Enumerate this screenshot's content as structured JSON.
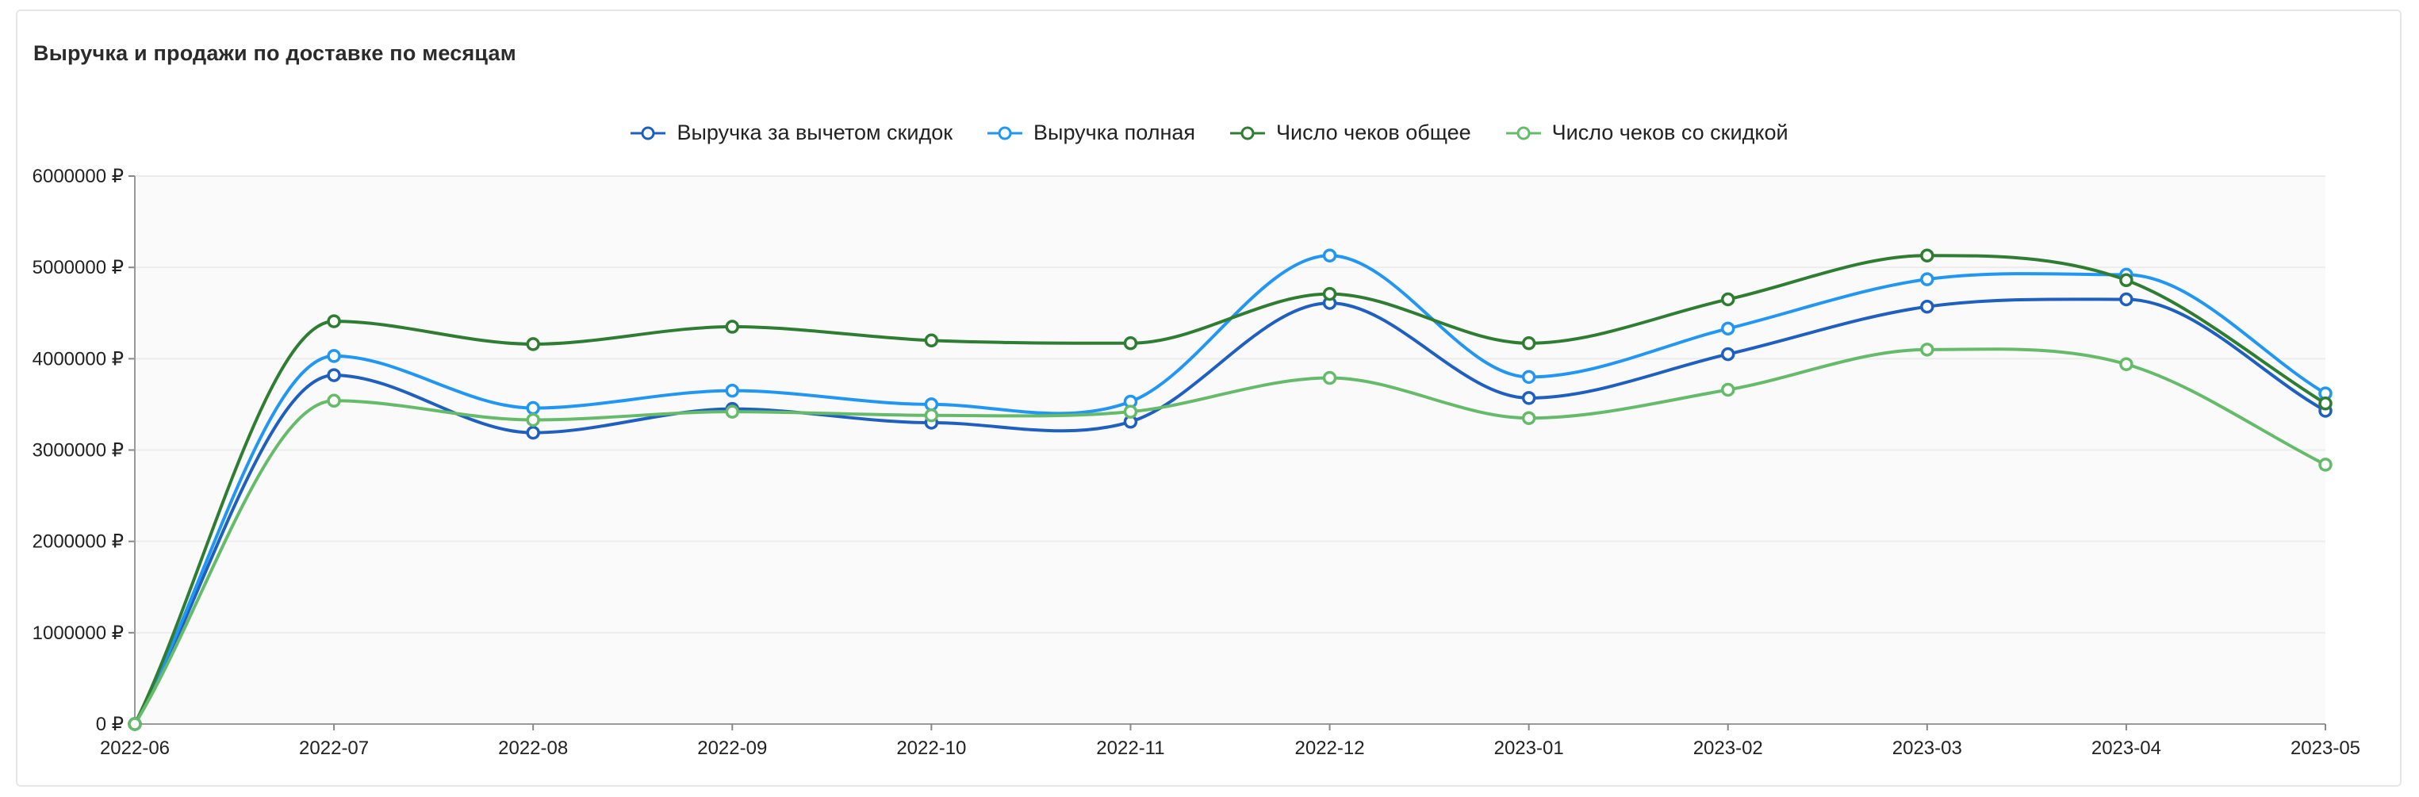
{
  "chart_data": {
    "type": "line",
    "title": "Выручка и продажи по доставке по месяцам",
    "x": [
      "2022-06",
      "2022-07",
      "2022-08",
      "2022-09",
      "2022-10",
      "2022-11",
      "2022-12",
      "2023-01",
      "2023-02",
      "2023-03",
      "2023-04",
      "2023-05"
    ],
    "ylim": [
      0,
      6000000
    ],
    "yticks": [
      "0 ₽",
      "1000000 ₽",
      "2000000 ₽",
      "3000000 ₽",
      "4000000 ₽",
      "5000000 ₽",
      "6000000 ₽"
    ],
    "grid": true,
    "legend_position": "top-center",
    "series": [
      {
        "name": "Выручка за вычетом скидок",
        "color": "#1f5fbf",
        "values": [
          0,
          3820000,
          3190000,
          3450000,
          3300000,
          3310000,
          4610000,
          3570000,
          4050000,
          4570000,
          4650000,
          3430000
        ]
      },
      {
        "name": "Выручка полная",
        "color": "#2196f3",
        "values": [
          0,
          4030000,
          3460000,
          3650000,
          3500000,
          3530000,
          5130000,
          3800000,
          4330000,
          4870000,
          4920000,
          3620000
        ]
      },
      {
        "name": "Число чеков общее",
        "color": "#2e7d32",
        "values": [
          0,
          4410000,
          4160000,
          4350000,
          4200000,
          4170000,
          4710000,
          4170000,
          4650000,
          5130000,
          4860000,
          3510000
        ]
      },
      {
        "name": "Число чеков со скидкой",
        "color": "#66bb6a",
        "values": [
          0,
          3540000,
          3330000,
          3420000,
          3380000,
          3420000,
          3790000,
          3350000,
          3660000,
          4100000,
          3940000,
          2840000
        ]
      }
    ]
  }
}
